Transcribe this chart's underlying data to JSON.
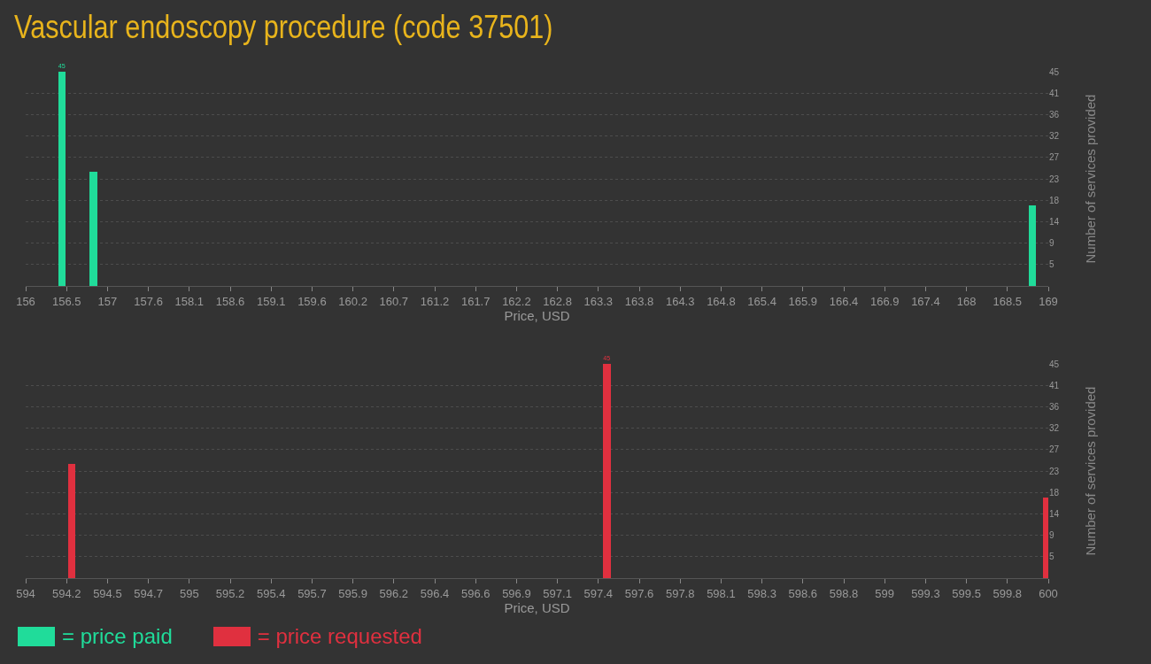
{
  "chart_data": [
    {
      "type": "bar",
      "title": "Vascular endoscopy procedure (code 37501)",
      "xlabel": "Price, USD",
      "ylabel": "Number of services provided",
      "x": [
        156.46,
        156.86,
        168.8
      ],
      "series": [
        {
          "name": "= price paid",
          "color": "#20dc9a",
          "values": [
            45,
            24,
            17
          ],
          "value_labels": [
            "45",
            null,
            null
          ]
        }
      ],
      "xlim": [
        156,
        169
      ],
      "xticks": [
        156,
        {
          "value": 156.52,
          "label": "156.5"
        },
        {
          "value": 157.04,
          "label": "157"
        },
        {
          "value": 157.56,
          "label": "157.6"
        },
        {
          "value": 158.08,
          "label": "158.1"
        },
        158.6,
        {
          "value": 159.12,
          "label": "159.1"
        },
        {
          "value": 159.64,
          "label": "159.6"
        },
        {
          "value": 160.16,
          "label": "160.2"
        },
        {
          "value": 160.68,
          "label": "160.7"
        },
        161.2,
        {
          "value": 161.72,
          "label": "161.7"
        },
        {
          "value": 162.24,
          "label": "162.2"
        },
        {
          "value": 162.76,
          "label": "162.8"
        },
        {
          "value": 163.28,
          "label": "163.3"
        },
        163.8,
        {
          "value": 164.32,
          "label": "164.3"
        },
        {
          "value": 164.84,
          "label": "164.8"
        },
        {
          "value": 165.36,
          "label": "165.4"
        },
        {
          "value": 165.88,
          "label": "165.9"
        },
        166.4,
        {
          "value": 166.92,
          "label": "166.9"
        },
        {
          "value": 167.44,
          "label": "167.4"
        },
        {
          "value": 167.96,
          "label": "168"
        },
        {
          "value": 168.48,
          "label": "168.5"
        },
        169
      ],
      "ylim": [
        0,
        45
      ],
      "yticks": [
        {
          "value": 4.5,
          "label": "5"
        },
        9,
        {
          "value": 13.5,
          "label": "14"
        },
        18,
        {
          "value": 22.5,
          "label": "23"
        },
        27,
        {
          "value": 31.5,
          "label": "32"
        },
        36,
        {
          "value": 40.5,
          "label": "41"
        },
        45
      ],
      "grid": "y",
      "legend": "bottom"
    },
    {
      "type": "bar",
      "xlabel": "Price, USD",
      "ylabel": "Number of services provided",
      "x": [
        594.27,
        597.41,
        599.99
      ],
      "series": [
        {
          "name": "= price requested",
          "color": "#e0303f",
          "values": [
            24,
            45,
            17
          ],
          "value_labels": [
            null,
            "45",
            null
          ]
        }
      ],
      "xlim": [
        594,
        600
      ],
      "xticks": [
        594,
        {
          "value": 594.24,
          "label": "594.2"
        },
        {
          "value": 594.48,
          "label": "594.5"
        },
        {
          "value": 594.72,
          "label": "594.7"
        },
        {
          "value": 594.96,
          "label": "595"
        },
        595.2,
        {
          "value": 595.44,
          "label": "595.4"
        },
        {
          "value": 595.68,
          "label": "595.7"
        },
        {
          "value": 595.92,
          "label": "595.9"
        },
        {
          "value": 596.16,
          "label": "596.2"
        },
        596.4,
        {
          "value": 596.64,
          "label": "596.6"
        },
        {
          "value": 596.88,
          "label": "596.9"
        },
        {
          "value": 597.12,
          "label": "597.1"
        },
        {
          "value": 597.36,
          "label": "597.4"
        },
        597.6,
        {
          "value": 597.84,
          "label": "597.8"
        },
        {
          "value": 598.08,
          "label": "598.1"
        },
        {
          "value": 598.32,
          "label": "598.3"
        },
        {
          "value": 598.56,
          "label": "598.6"
        },
        598.8,
        {
          "value": 599.04,
          "label": "599"
        },
        {
          "value": 599.28,
          "label": "599.3"
        },
        {
          "value": 599.52,
          "label": "599.5"
        },
        {
          "value": 599.76,
          "label": "599.8"
        },
        600
      ],
      "ylim": [
        0,
        45
      ],
      "yticks": [
        {
          "value": 4.5,
          "label": "5"
        },
        9,
        {
          "value": 13.5,
          "label": "14"
        },
        18,
        {
          "value": 22.5,
          "label": "23"
        },
        27,
        {
          "value": 31.5,
          "label": "32"
        },
        36,
        {
          "value": 40.5,
          "label": "41"
        },
        45
      ],
      "grid": "y",
      "legend": "bottom"
    }
  ]
}
